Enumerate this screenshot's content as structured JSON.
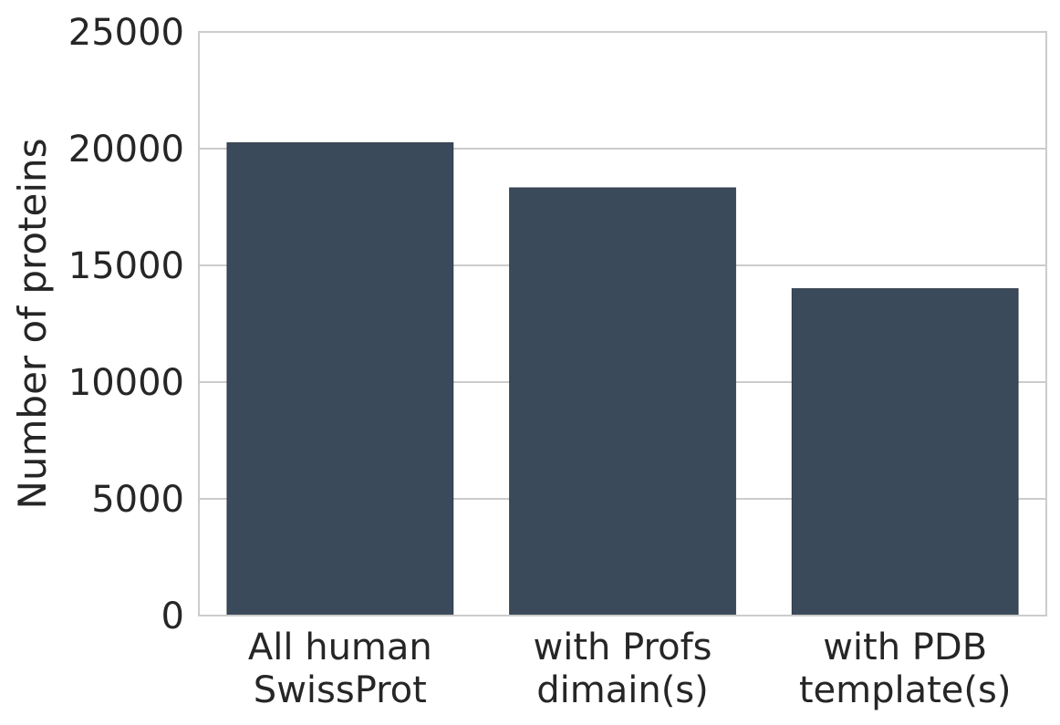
{
  "chart_data": {
    "type": "bar",
    "categories": [
      [
        "All human",
        "SwissProt"
      ],
      [
        "with Profs",
        "dimain(s)"
      ],
      [
        "with PDB",
        "template(s)"
      ]
    ],
    "values": [
      20250,
      18320,
      14000
    ],
    "xlabel": "",
    "ylabel": "Number of proteins",
    "ylim": [
      0,
      25000
    ],
    "yticks": [
      0,
      5000,
      10000,
      15000,
      20000,
      25000
    ],
    "ytick_labels": [
      "0",
      "5000",
      "10000",
      "15000",
      "20000",
      "25000"
    ],
    "grid": true,
    "bar_color": "#3b4a5a",
    "grid_color": "#cccccc",
    "text_color": "#262626"
  }
}
